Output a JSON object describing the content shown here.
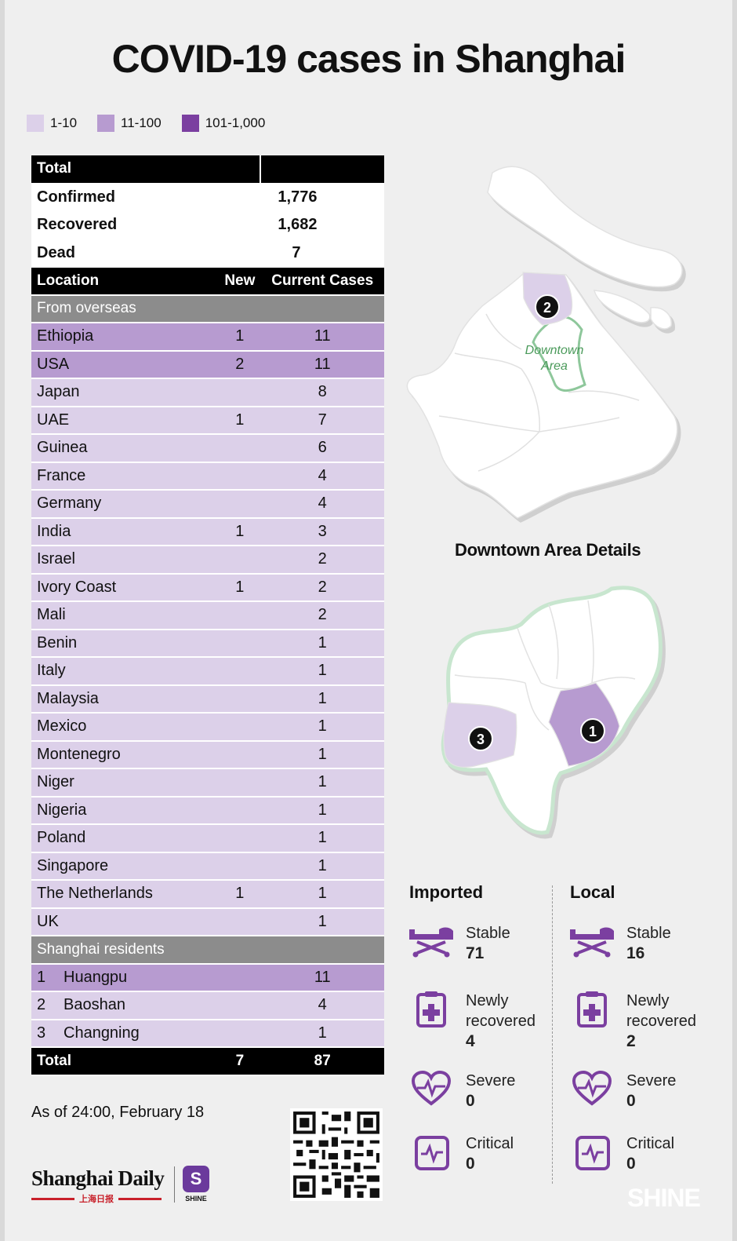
{
  "title": "COVID-19 cases in Shanghai",
  "legend": [
    {
      "label": "1-10",
      "color": "#dcd0e9"
    },
    {
      "label": "11-100",
      "color": "#b79bd0"
    },
    {
      "label": "101-1,000",
      "color": "#7b3fa0"
    }
  ],
  "totals": {
    "header": "Total",
    "rows": [
      {
        "label": "Confirmed",
        "value": "1,776"
      },
      {
        "label": "Recovered",
        "value": "1,682"
      },
      {
        "label": "Dead",
        "value": "7"
      }
    ]
  },
  "columns": {
    "location": "Location",
    "new": "New",
    "current": "Current Cases"
  },
  "overseas": {
    "label": "From overseas",
    "rows": [
      {
        "name": "Ethiopia",
        "new": "1",
        "current": "11"
      },
      {
        "name": "USA",
        "new": "2",
        "current": "11"
      },
      {
        "name": "Japan",
        "new": "",
        "current": "8"
      },
      {
        "name": "UAE",
        "new": "1",
        "current": "7"
      },
      {
        "name": "Guinea",
        "new": "",
        "current": "6"
      },
      {
        "name": "France",
        "new": "",
        "current": "4"
      },
      {
        "name": "Germany",
        "new": "",
        "current": "4"
      },
      {
        "name": "India",
        "new": "1",
        "current": "3"
      },
      {
        "name": "Israel",
        "new": "",
        "current": "2"
      },
      {
        "name": "Ivory Coast",
        "new": "1",
        "current": "2"
      },
      {
        "name": "Mali",
        "new": "",
        "current": "2"
      },
      {
        "name": "Benin",
        "new": "",
        "current": "1"
      },
      {
        "name": "Italy",
        "new": "",
        "current": "1"
      },
      {
        "name": "Malaysia",
        "new": "",
        "current": "1"
      },
      {
        "name": "Mexico",
        "new": "",
        "current": "1"
      },
      {
        "name": "Montenegro",
        "new": "",
        "current": "1"
      },
      {
        "name": "Niger",
        "new": "",
        "current": "1"
      },
      {
        "name": "Nigeria",
        "new": "",
        "current": "1"
      },
      {
        "name": "Poland",
        "new": "",
        "current": "1"
      },
      {
        "name": "Singapore",
        "new": "",
        "current": "1"
      },
      {
        "name": "The Netherlands",
        "new": "1",
        "current": "1"
      },
      {
        "name": "UK",
        "new": "",
        "current": "1"
      }
    ]
  },
  "residents": {
    "label": "Shanghai residents",
    "rows": [
      {
        "num": "1",
        "name": "Huangpu",
        "new": "",
        "current": "11"
      },
      {
        "num": "2",
        "name": "Baoshan",
        "new": "",
        "current": "4"
      },
      {
        "num": "3",
        "name": "Changning",
        "new": "",
        "current": "1"
      }
    ]
  },
  "grand_total": {
    "label": "Total",
    "new": "7",
    "current": "87"
  },
  "as_of": "As of 24:00, February 18",
  "logo": {
    "name": "Shanghai Daily",
    "cn": "上海日报",
    "badge": "S",
    "badge_label": "SHINE"
  },
  "map": {
    "downtown_label_1": "Downtown",
    "downtown_label_2": "Area",
    "details_title": "Downtown Area Details",
    "markers": [
      "1",
      "2",
      "3"
    ]
  },
  "imported": {
    "title": "Imported",
    "stable_label": "Stable",
    "stable": "71",
    "recovered_label_1": "Newly",
    "recovered_label_2": "recovered",
    "recovered": "4",
    "severe_label": "Severe",
    "severe": "0",
    "critical_label": "Critical",
    "critical": "0"
  },
  "local": {
    "title": "Local",
    "stable_label": "Stable",
    "stable": "16",
    "recovered_label_1": "Newly",
    "recovered_label_2": "recovered",
    "recovered": "2",
    "severe_label": "Severe",
    "severe": "0",
    "critical_label": "Critical",
    "critical": "0"
  },
  "watermark": "SHINE",
  "colors": {
    "accent": "#7b3fa0",
    "light": "#dcd0e9",
    "medium": "#b79bd0",
    "green": "#4a9a5a"
  }
}
